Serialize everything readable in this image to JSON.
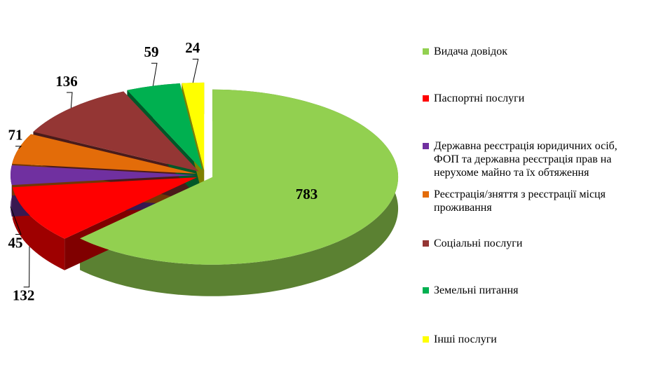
{
  "chart_data": {
    "type": "pie",
    "categories": [
      "Видача довідок",
      "Паспортні послуги",
      "Державна реєстрація юридичних осіб, ФОП та державна реєстрація прав на нерухоме майно та їх обтяження",
      "Реєстрація/зняття з реєстрації місця проживання",
      "Соціальні послуги",
      "Земельні питання",
      "Інші послуги"
    ],
    "values": [
      783,
      132,
      45,
      71,
      136,
      59,
      24
    ],
    "colors": [
      "#92d050",
      "#ff0000",
      "#7030a0",
      "#e36c09",
      "#943634",
      "#00b050",
      "#ffff00"
    ]
  }
}
